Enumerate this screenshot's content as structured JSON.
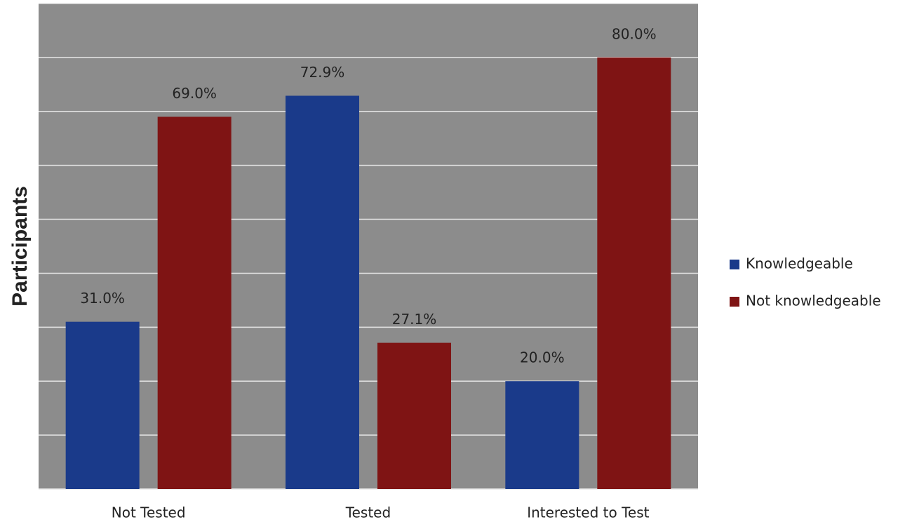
{
  "chart_data": {
    "type": "bar",
    "y_label": "Participants",
    "categories": [
      "Not Tested",
      "Tested",
      "Interested to Test"
    ],
    "series": [
      {
        "name": "Knowledgeable",
        "color": "#1a3a8a",
        "values": [
          31.0,
          72.9,
          20.0
        ],
        "value_labels": [
          "31.0%",
          "72.9%",
          "20.0%"
        ]
      },
      {
        "name": "Not knowledgeable",
        "color": "#7f1414",
        "values": [
          69.0,
          27.1,
          80.0
        ],
        "value_labels": [
          "69.0%",
          "27.1%",
          "80.0%"
        ]
      }
    ],
    "ylim": [
      0,
      90
    ],
    "yticks": [
      0,
      10,
      20,
      30,
      40,
      50,
      60,
      70,
      80,
      90
    ],
    "grid": true,
    "legend": "right"
  }
}
